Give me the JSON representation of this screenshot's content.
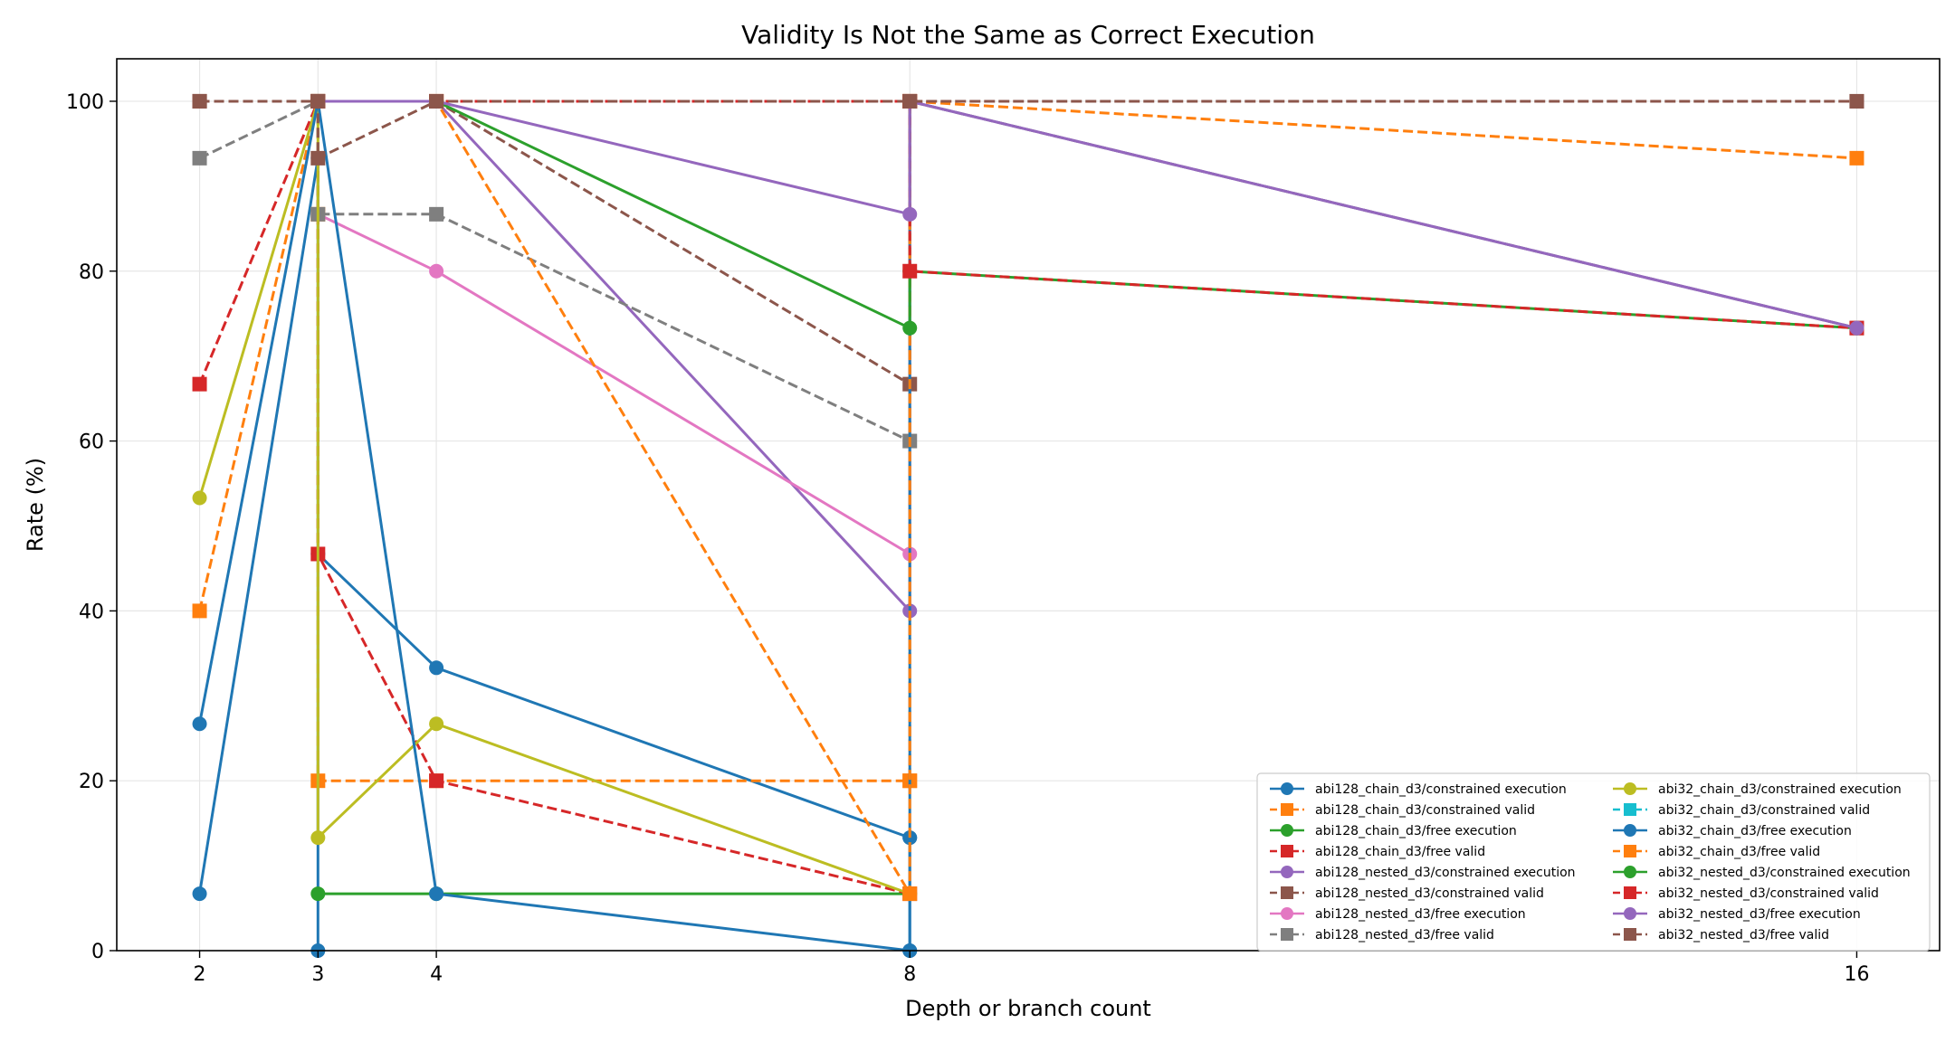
{
  "chart_data": {
    "type": "line",
    "title": "Validity Is Not the Same as Correct Execution",
    "xlabel": "Depth or branch count",
    "ylabel": "Rate (%)",
    "xlim": [
      1.3,
      16.7
    ],
    "ylim": [
      0,
      105
    ],
    "xticks": [
      2,
      3,
      4,
      8,
      16
    ],
    "yticks": [
      0,
      20,
      40,
      60,
      80,
      100
    ],
    "grid": true,
    "legend_position": "lower-right",
    "series": [
      {
        "name": "abi128_chain_d3/constrained execution",
        "color": "#1f77b4",
        "marker": "circle",
        "dashed": false,
        "x": [
          2,
          3,
          3,
          3,
          4,
          8,
          8,
          8
        ],
        "y": [
          6.7,
          93.3,
          0,
          46.7,
          33.3,
          13.3,
          0,
          13.3
        ]
      },
      {
        "name": "abi128_chain_d3/constrained valid",
        "color": "#ff7f0e",
        "marker": "square",
        "dashed": true,
        "x": [
          2,
          3,
          3,
          3,
          4,
          8,
          8,
          8
        ],
        "y": [
          40,
          100,
          86.7,
          20,
          20,
          20,
          100,
          20
        ]
      },
      {
        "name": "abi128_chain_d3/free execution",
        "color": "#2ca02c",
        "marker": "circle",
        "dashed": false,
        "x": [
          3,
          4,
          8
        ],
        "y": [
          6.7,
          6.7,
          6.7
        ]
      },
      {
        "name": "abi128_chain_d3/free valid",
        "color": "#d62728",
        "marker": "square",
        "dashed": true,
        "x": [
          2,
          3,
          3,
          4,
          8
        ],
        "y": [
          66.7,
          100,
          46.7,
          20,
          6.7
        ]
      },
      {
        "name": "abi128_nested_d3/constrained execution",
        "color": "#9467bd",
        "marker": "circle",
        "dashed": false,
        "x": [
          3,
          4,
          8,
          8,
          16
        ],
        "y": [
          100,
          100,
          40,
          100,
          73.3
        ]
      },
      {
        "name": "abi128_nested_d3/constrained valid",
        "color": "#8c564b",
        "marker": "square",
        "dashed": true,
        "x": [
          3,
          4,
          8,
          8,
          16
        ],
        "y": [
          100,
          100,
          66.7,
          100,
          100
        ]
      },
      {
        "name": "abi128_nested_d3/free execution",
        "color": "#e377c2",
        "marker": "circle",
        "dashed": false,
        "x": [
          3,
          4,
          8
        ],
        "y": [
          86.7,
          80,
          46.7
        ]
      },
      {
        "name": "abi128_nested_d3/free valid",
        "color": "#7f7f7f",
        "marker": "square",
        "dashed": true,
        "x": [
          2,
          3,
          3,
          4,
          8,
          8,
          16
        ],
        "y": [
          93.3,
          100,
          86.7,
          86.7,
          60,
          100,
          73.3
        ]
      },
      {
        "name": "abi32_chain_d3/constrained execution",
        "color": "#bcbd22",
        "marker": "circle",
        "dashed": false,
        "x": [
          2,
          3,
          3,
          4,
          8
        ],
        "y": [
          53.3,
          100,
          13.3,
          26.7,
          6.7
        ]
      },
      {
        "name": "abi32_chain_d3/constrained valid",
        "color": "#17becf",
        "marker": "square",
        "dashed": true,
        "x": [
          2,
          3
        ],
        "y": [
          100,
          100
        ]
      },
      {
        "name": "abi32_chain_d3/free execution",
        "color": "#1f77b4",
        "marker": "circle",
        "dashed": false,
        "x": [
          2,
          3,
          4,
          8,
          8
        ],
        "y": [
          26.7,
          100,
          6.7,
          0,
          100
        ]
      },
      {
        "name": "abi32_chain_d3/free valid",
        "color": "#ff7f0e",
        "marker": "square",
        "dashed": true,
        "x": [
          2,
          3,
          4,
          8,
          8,
          16
        ],
        "y": [
          100,
          100,
          100,
          6.7,
          100,
          93.3
        ]
      },
      {
        "name": "abi32_nested_d3/constrained execution",
        "color": "#2ca02c",
        "marker": "circle",
        "dashed": false,
        "x": [
          3,
          4,
          8,
          8,
          16
        ],
        "y": [
          100,
          100,
          73.3,
          80,
          73.3
        ]
      },
      {
        "name": "abi32_nested_d3/constrained valid",
        "color": "#d62728",
        "marker": "square",
        "dashed": true,
        "x": [
          2,
          3,
          4,
          8,
          8,
          16
        ],
        "y": [
          100,
          100,
          100,
          100,
          80,
          73.3
        ]
      },
      {
        "name": "abi32_nested_d3/free execution",
        "color": "#9467bd",
        "marker": "circle",
        "dashed": false,
        "x": [
          3,
          4,
          8,
          8,
          16
        ],
        "y": [
          100,
          100,
          86.7,
          100,
          73.3
        ]
      },
      {
        "name": "abi32_nested_d3/free valid",
        "color": "#8c564b",
        "marker": "square",
        "dashed": true,
        "x": [
          2,
          3,
          3,
          4,
          8,
          16
        ],
        "y": [
          100,
          100,
          93.3,
          100,
          100,
          100
        ]
      }
    ]
  }
}
